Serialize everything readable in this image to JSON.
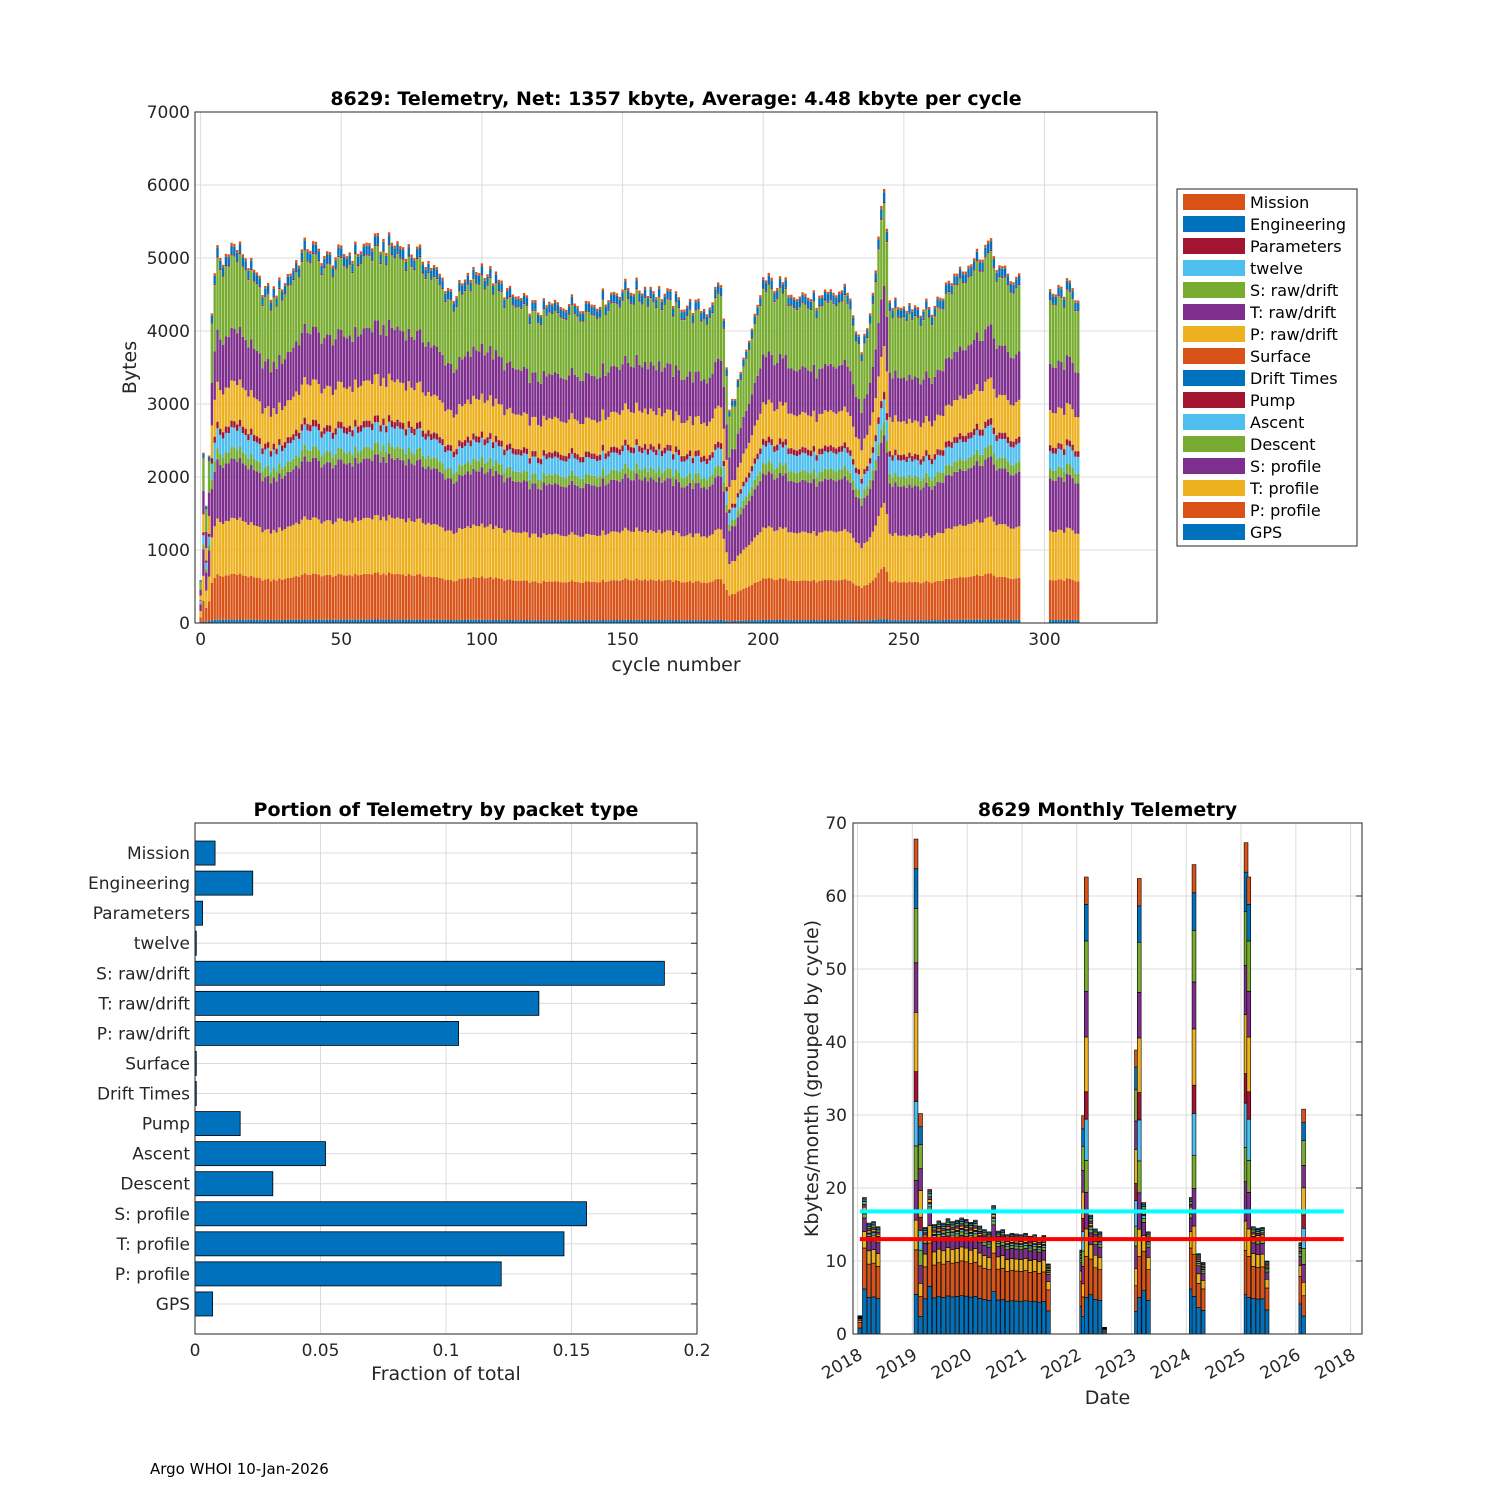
{
  "footer": "Argo WHOI 10-Jan-2026",
  "colors": {
    "blue": "#0072BD",
    "orange": "#D95319",
    "yellow": "#EDB120",
    "purple": "#7E2F8E",
    "green": "#77AC30",
    "cyan": "#4DBEEE",
    "red": "#A2142F",
    "line_cyan": "#00FFFF",
    "line_red": "#FF0000",
    "grid": "#dcdcdc"
  },
  "chart_data": [
    {
      "type": "bar",
      "stacked": true,
      "title": "8629: Telemetry, Net:   1357 kbyte,  Average: 4.48 kbyte per cycle",
      "xlabel": "cycle number",
      "ylabel": "Bytes",
      "xlim": [
        -2,
        340
      ],
      "ylim": [
        0,
        7000
      ],
      "xticks": [
        0,
        50,
        100,
        150,
        200,
        250,
        300
      ],
      "yticks": [
        0,
        1000,
        2000,
        3000,
        4000,
        5000,
        6000,
        7000
      ],
      "grid": true,
      "legend_position": "right",
      "legend": [
        "Mission",
        "Engineering",
        "Parameters",
        "twelve",
        "S: raw/drift",
        "T: raw/drift",
        "P: raw/drift",
        "Surface",
        "Drift Times",
        "Pump",
        "Ascent",
        "Descent",
        "S: profile",
        "T: profile",
        "P: profile",
        "GPS"
      ],
      "segments_bottom_to_top": [
        {
          "name": "GPS",
          "bytes": 40
        },
        {
          "name": "P: profile",
          "bytes": 540
        },
        {
          "name": "T: profile",
          "bytes": 660
        },
        {
          "name": "S: profile",
          "bytes": 700
        },
        {
          "name": "Descent",
          "bytes": 135
        },
        {
          "name": "Ascent",
          "bytes": 235
        },
        {
          "name": "Pump",
          "bytes": 75
        },
        {
          "name": "Drift Times",
          "bytes": 3
        },
        {
          "name": "Surface",
          "bytes": 3
        },
        {
          "name": "P: raw/drift",
          "bytes": 470
        },
        {
          "name": "T: raw/drift",
          "bytes": 620
        },
        {
          "name": "S: raw/drift",
          "bytes": 850
        },
        {
          "name": "twelve",
          "bytes": 3
        },
        {
          "name": "Parameters",
          "bytes": 15
        },
        {
          "name": "Engineering",
          "bytes": 100
        },
        {
          "name": "Mission",
          "bytes": 35
        }
      ],
      "cycle_range": [
        0,
        312
      ],
      "missing_cycles": [
        292,
        301
      ],
      "approx_total_by_cycle": [
        [
          0,
          600
        ],
        [
          1,
          2300
        ],
        [
          2,
          1600
        ],
        [
          3,
          2300
        ],
        [
          4,
          4300
        ],
        [
          6,
          5100
        ],
        [
          8,
          4900
        ],
        [
          10,
          5200
        ],
        [
          15,
          5100
        ],
        [
          20,
          4700
        ],
        [
          25,
          4500
        ],
        [
          30,
          4700
        ],
        [
          38,
          5200
        ],
        [
          45,
          5000
        ],
        [
          55,
          5100
        ],
        [
          60,
          5200
        ],
        [
          70,
          5200
        ],
        [
          80,
          5000
        ],
        [
          90,
          4500
        ],
        [
          100,
          4900
        ],
        [
          110,
          4500
        ],
        [
          120,
          4300
        ],
        [
          130,
          4400
        ],
        [
          140,
          4400
        ],
        [
          150,
          4600
        ],
        [
          160,
          4600
        ],
        [
          170,
          4400
        ],
        [
          180,
          4300
        ],
        [
          185,
          4700
        ],
        [
          188,
          2900
        ],
        [
          195,
          3800
        ],
        [
          200,
          4700
        ],
        [
          210,
          4600
        ],
        [
          220,
          4400
        ],
        [
          230,
          4600
        ],
        [
          235,
          3700
        ],
        [
          240,
          4700
        ],
        [
          243,
          6100
        ],
        [
          245,
          4400
        ],
        [
          250,
          4400
        ],
        [
          260,
          4300
        ],
        [
          270,
          4900
        ],
        [
          275,
          5000
        ],
        [
          280,
          5200
        ],
        [
          285,
          4800
        ],
        [
          290,
          4700
        ],
        [
          303,
          4500
        ],
        [
          308,
          4600
        ],
        [
          312,
          4500
        ]
      ]
    },
    {
      "type": "bar",
      "orientation": "horizontal",
      "title": "Portion of Telemetry by packet type",
      "xlabel": "Fraction of total",
      "ylabel": "",
      "xlim": [
        0,
        0.2
      ],
      "xticks": [
        0,
        0.05,
        0.1,
        0.15,
        0.2
      ],
      "xtick_labels": [
        "0",
        "0.05",
        "0.1",
        "0.15",
        "0.2"
      ],
      "grid": true,
      "categories": [
        "Mission",
        "Engineering",
        "Parameters",
        "twelve",
        "S: raw/drift",
        "T: raw/drift",
        "P: raw/drift",
        "Surface",
        "Drift Times",
        "Pump",
        "Ascent",
        "Descent",
        "S: profile",
        "T: profile",
        "P: profile",
        "GPS"
      ],
      "values": [
        0.008,
        0.023,
        0.003,
        0.0005,
        0.187,
        0.137,
        0.105,
        0.0005,
        0.0005,
        0.018,
        0.052,
        0.031,
        0.156,
        0.147,
        0.122,
        0.007
      ]
    },
    {
      "type": "bar",
      "stacked": true,
      "title": "8629 Monthly Telemetry",
      "xlabel": "Date",
      "ylabel": "Kbytes/month (grouped by cycle)",
      "ylim": [
        0,
        70
      ],
      "yticks": [
        0,
        10,
        20,
        30,
        40,
        50,
        60,
        70
      ],
      "xtick_labels": [
        "2018",
        "2019",
        "2020",
        "2021",
        "2022",
        "2023",
        "2024",
        "2025",
        "2026",
        "2018"
      ],
      "grid": true,
      "reference_lines": [
        {
          "name": "cyan line",
          "value": 16.8,
          "color": "#00FFFF"
        },
        {
          "name": "red line",
          "value": 13.0,
          "color": "#FF0000"
        }
      ],
      "segment_order": [
        "GPS",
        "P: profile",
        "T: profile",
        "S: profile",
        "Descent",
        "Ascent",
        "Pump",
        "P: raw/drift",
        "T: raw/drift",
        "S: raw/drift",
        "Engineering",
        "Mission"
      ],
      "series_months": [
        {
          "t": 0.0,
          "v": 2.5
        },
        {
          "t": 1.0,
          "v": 18.7
        },
        {
          "t": 2.0,
          "v": 15.2
        },
        {
          "t": 3.0,
          "v": 15.4
        },
        {
          "t": 4.0,
          "v": 14.7
        },
        {
          "t": 12.3,
          "v": 67.8
        },
        {
          "t": 13.3,
          "v": 30.2
        },
        {
          "t": 14.3,
          "v": 14.6
        },
        {
          "t": 15.3,
          "v": 19.8
        },
        {
          "t": 16.3,
          "v": 15.0
        },
        {
          "t": 17.3,
          "v": 15.5
        },
        {
          "t": 18.3,
          "v": 15.2
        },
        {
          "t": 19.3,
          "v": 15.8
        },
        {
          "t": 20.3,
          "v": 15.4
        },
        {
          "t": 21.3,
          "v": 15.6
        },
        {
          "t": 22.3,
          "v": 15.9
        },
        {
          "t": 23.3,
          "v": 15.7
        },
        {
          "t": 24.3,
          "v": 15.3
        },
        {
          "t": 25.3,
          "v": 15.6
        },
        {
          "t": 26.3,
          "v": 14.8
        },
        {
          "t": 27.3,
          "v": 14.3
        },
        {
          "t": 28.3,
          "v": 14.0
        },
        {
          "t": 29.3,
          "v": 17.6
        },
        {
          "t": 30.3,
          "v": 14.1
        },
        {
          "t": 31.3,
          "v": 14.3
        },
        {
          "t": 32.3,
          "v": 13.6
        },
        {
          "t": 33.3,
          "v": 13.8
        },
        {
          "t": 34.3,
          "v": 13.7
        },
        {
          "t": 35.3,
          "v": 13.6
        },
        {
          "t": 36.3,
          "v": 13.8
        },
        {
          "t": 37.3,
          "v": 13.4
        },
        {
          "t": 38.3,
          "v": 13.6
        },
        {
          "t": 39.3,
          "v": 13.2
        },
        {
          "t": 40.3,
          "v": 13.5
        },
        {
          "t": 41.3,
          "v": 9.6
        },
        {
          "t": 48.6,
          "v": 11.5
        },
        {
          "t": 49.0,
          "v": 29.9
        },
        {
          "t": 49.6,
          "v": 62.6
        },
        {
          "t": 50.6,
          "v": 16.3
        },
        {
          "t": 51.6,
          "v": 14.4
        },
        {
          "t": 52.6,
          "v": 14.0
        },
        {
          "t": 53.6,
          "v": 0.9
        },
        {
          "t": 60.6,
          "v": 38.9
        },
        {
          "t": 61.2,
          "v": 62.4
        },
        {
          "t": 62.2,
          "v": 18.0
        },
        {
          "t": 63.2,
          "v": 14.0
        },
        {
          "t": 72.6,
          "v": 18.7
        },
        {
          "t": 73.2,
          "v": 64.3
        },
        {
          "t": 74.2,
          "v": 11.0
        },
        {
          "t": 75.2,
          "v": 9.8
        },
        {
          "t": 84.6,
          "v": 67.3
        },
        {
          "t": 85.2,
          "v": 62.6
        },
        {
          "t": 86.2,
          "v": 14.7
        },
        {
          "t": 87.2,
          "v": 14.5
        },
        {
          "t": 88.2,
          "v": 14.6
        },
        {
          "t": 89.2,
          "v": 10.0
        },
        {
          "t": 96.6,
          "v": 12.5
        },
        {
          "t": 97.2,
          "v": 30.8
        }
      ]
    }
  ]
}
